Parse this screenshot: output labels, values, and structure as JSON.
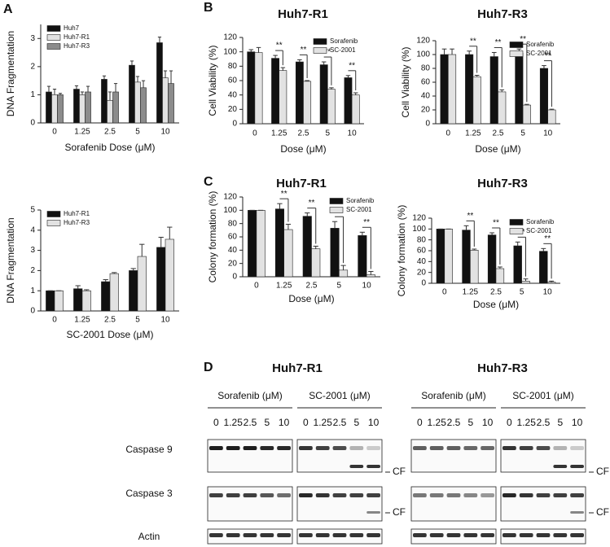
{
  "panel_labels": [
    "A",
    "B",
    "C",
    "D"
  ],
  "chart_data": [
    {
      "type": "bar",
      "ylabel": "DNA Fragmentation",
      "xlabel": "Sorafenib Dose (μM)",
      "categories": [
        "0",
        "1.25",
        "2.5",
        "5",
        "10"
      ],
      "series": [
        {
          "name": "Huh7",
          "color": "#111111",
          "values": [
            1.1,
            1.2,
            1.55,
            2.05,
            2.85
          ],
          "errors": [
            0.2,
            0.12,
            0.12,
            0.15,
            0.2
          ]
        },
        {
          "name": "Huh7-R1",
          "color": "#e2e2e2",
          "values": [
            1.0,
            1.0,
            0.8,
            1.45,
            1.6
          ],
          "errors": [
            0.2,
            0.1,
            0.3,
            0.2,
            0.25
          ]
        },
        {
          "name": "Huh7-R3",
          "color": "#8c8c8c",
          "values": [
            1.0,
            1.1,
            1.1,
            1.25,
            1.4
          ],
          "errors": [
            0.05,
            0.2,
            0.3,
            0.25,
            0.45
          ]
        }
      ],
      "ylim": [
        0,
        3.5
      ],
      "yticks": [
        0,
        1,
        2,
        3
      ],
      "legend": "upper left"
    },
    {
      "type": "bar",
      "ylabel": "DNA Fragmentation",
      "xlabel": "SC-2001 Dose (μM)",
      "categories": [
        "0",
        "1.25",
        "2.5",
        "5",
        "10"
      ],
      "series": [
        {
          "name": "Huh7-R1",
          "color": "#111111",
          "values": [
            1.0,
            1.1,
            1.45,
            2.0,
            3.15
          ],
          "errors": [
            0,
            0.15,
            0.1,
            0.1,
            0.5
          ]
        },
        {
          "name": "Huh7-R3",
          "color": "#e2e2e2",
          "values": [
            1.0,
            1.0,
            1.85,
            2.7,
            3.55
          ],
          "errors": [
            0,
            0.05,
            0.05,
            0.6,
            0.6
          ]
        }
      ],
      "ylim": [
        0,
        5
      ],
      "yticks": [
        0,
        1,
        2,
        3,
        4,
        5
      ],
      "legend": "upper left"
    },
    {
      "type": "bar",
      "title": "Huh7-R1",
      "ylabel": "Cell Viability (%)",
      "xlabel": "Dose (μM)",
      "categories": [
        "0",
        "1.25",
        "2.5",
        "5",
        "10"
      ],
      "series": [
        {
          "name": "Sorafenib",
          "color": "#111111",
          "values": [
            100,
            91,
            86,
            82,
            64
          ],
          "errors": [
            3,
            4,
            3,
            4,
            3
          ]
        },
        {
          "name": "SC-2001",
          "color": "#e2e2e2",
          "values": [
            99,
            74,
            59,
            48,
            40
          ],
          "errors": [
            7,
            4,
            1,
            2,
            3
          ]
        }
      ],
      "significance": [
        null,
        "**",
        "**",
        "**",
        "**"
      ],
      "ylim": [
        0,
        120
      ],
      "yticks": [
        0,
        20,
        40,
        60,
        80,
        100,
        120
      ],
      "legend": "upper right"
    },
    {
      "type": "bar",
      "title": "Huh7-R3",
      "ylabel": "Cell Viability (%)",
      "xlabel": "Dose (μM)",
      "categories": [
        "0",
        "1.25",
        "2.5",
        "5",
        "10"
      ],
      "series": [
        {
          "name": "Sorafenib",
          "color": "#111111",
          "values": [
            100,
            100,
            97,
            102,
            80
          ],
          "errors": [
            8,
            5,
            6,
            6,
            4
          ]
        },
        {
          "name": "SC-2001",
          "color": "#e2e2e2",
          "values": [
            100,
            68,
            46,
            27,
            20
          ],
          "errors": [
            8,
            2,
            3,
            1,
            1
          ]
        }
      ],
      "significance": [
        null,
        "**",
        "**",
        "**",
        "**"
      ],
      "ylim": [
        0,
        120
      ],
      "yticks": [
        0,
        20,
        40,
        60,
        80,
        100,
        120
      ],
      "legend": "upper right"
    },
    {
      "type": "bar",
      "title": "Huh7-R1",
      "ylabel": "Colony formation (%)",
      "xlabel": "Dose (μM)",
      "categories": [
        "0",
        "1.25",
        "2.5",
        "5",
        "10"
      ],
      "series": [
        {
          "name": "Sorafenib",
          "color": "#111111",
          "values": [
            100,
            102,
            91,
            73,
            62
          ],
          "errors": [
            0,
            8,
            5,
            10,
            5
          ]
        },
        {
          "name": "SC-2001",
          "color": "#e2e2e2",
          "values": [
            100,
            71,
            42,
            10,
            3
          ],
          "errors": [
            0,
            8,
            4,
            7,
            5
          ]
        }
      ],
      "significance": [
        null,
        "**",
        "**",
        "**",
        "**"
      ],
      "ylim": [
        0,
        120
      ],
      "yticks": [
        0,
        20,
        40,
        60,
        80,
        100,
        120
      ],
      "legend": "upper right"
    },
    {
      "type": "bar",
      "title": "Huh7-R3",
      "ylabel": "Colony formation (%)",
      "xlabel": "Dose (μM)",
      "categories": [
        "0",
        "1.25",
        "2.5",
        "5",
        "10"
      ],
      "series": [
        {
          "name": "Sorafenib",
          "color": "#111111",
          "values": [
            100,
            98,
            89,
            69,
            59
          ],
          "errors": [
            0,
            8,
            4,
            7,
            5
          ]
        },
        {
          "name": "SC-2001",
          "color": "#e2e2e2",
          "values": [
            100,
            61,
            27,
            4,
            2
          ],
          "errors": [
            0,
            2,
            3,
            4,
            2
          ]
        }
      ],
      "significance": [
        null,
        "**",
        "**",
        "**",
        "**"
      ],
      "ylim": [
        0,
        120
      ],
      "yticks": [
        0,
        20,
        40,
        60,
        80,
        100,
        120
      ],
      "legend": "upper right"
    }
  ],
  "western_blot": {
    "rows": [
      "Caspase 9",
      "Caspase 3",
      "Actin"
    ],
    "panels": [
      {
        "title": "Huh7-R1",
        "cf_labels": [
          "CF",
          "CF"
        ],
        "groups": [
          {
            "label": "Sorafenib (μM)",
            "lanes": [
              "0",
              "1.25",
              "2.5",
              "5",
              "10"
            ]
          },
          {
            "label": "SC-2001 (μM)",
            "lanes": [
              "0",
              "1.25",
              "2.5",
              "5",
              "10"
            ]
          }
        ]
      },
      {
        "title": "Huh7-R3",
        "cf_labels": [
          "CF",
          "CF"
        ],
        "groups": [
          {
            "label": "Sorafenib (μM)",
            "lanes": [
              "0",
              "1.25",
              "2.5",
              "5",
              "10"
            ]
          },
          {
            "label": "SC-2001 (μM)",
            "lanes": [
              "0",
              "1.25",
              "2.5",
              "5",
              "10"
            ]
          }
        ]
      }
    ]
  }
}
